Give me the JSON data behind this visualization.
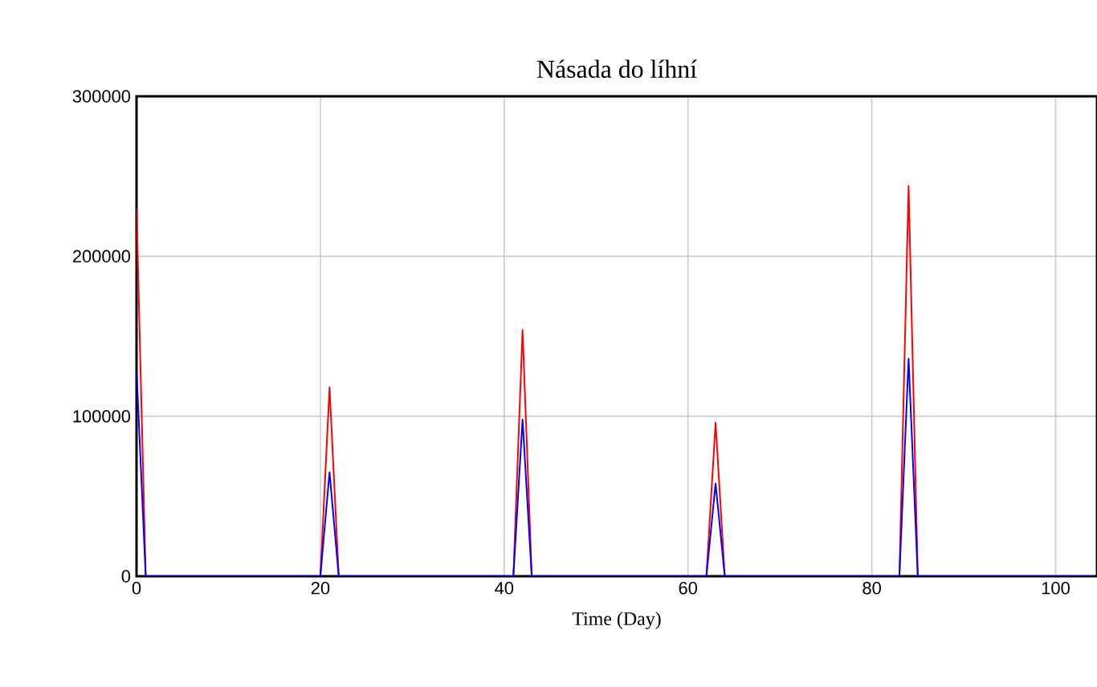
{
  "chart_data": {
    "type": "line",
    "title": "Násada do líhní",
    "xlabel": "Time (Day)",
    "x": [
      0,
      1,
      20,
      21,
      22,
      41,
      42,
      43,
      62,
      63,
      64,
      83,
      84,
      85,
      104
    ],
    "series": [
      {
        "color": "#ff0000",
        "values": [
          230000,
          0,
          0,
          118000,
          0,
          0,
          154000,
          0,
          0,
          96000,
          0,
          0,
          244000,
          0,
          0
        ]
      },
      {
        "color": "#0000ff",
        "values": [
          129000,
          0,
          0,
          65000,
          0,
          0,
          98000,
          0,
          0,
          58000,
          0,
          0,
          136000,
          0,
          0
        ]
      }
    ],
    "xlim": [
      0,
      104.5
    ],
    "ylim": [
      0,
      300000
    ],
    "xticks": [
      0,
      20,
      40,
      60,
      80,
      100
    ],
    "yticks": [
      0,
      100000,
      200000,
      300000
    ],
    "grid": true,
    "marker": "none",
    "line_style": "solid"
  }
}
